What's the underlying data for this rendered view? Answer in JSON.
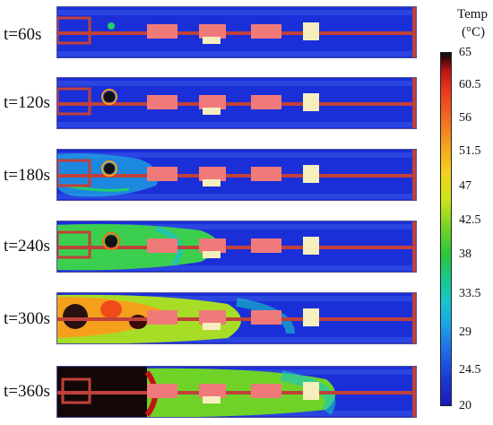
{
  "time_labels": [
    "t=60s",
    "t=120s",
    "t=180s",
    "t=240s",
    "t=300s",
    "t=360s"
  ],
  "colorbar": {
    "title": "Temp",
    "unit": "(°C)",
    "ticks": [
      "65",
      "60.5",
      "56",
      "51.5",
      "47",
      "42.5",
      "38",
      "33.5",
      "29",
      "24.5",
      "20"
    ]
  },
  "colors": {
    "cold": "#1a2ed6",
    "hot": "#111111",
    "pipe": "#c0413a",
    "battery": "#f07a7a",
    "cell": "#f7eebd"
  }
}
